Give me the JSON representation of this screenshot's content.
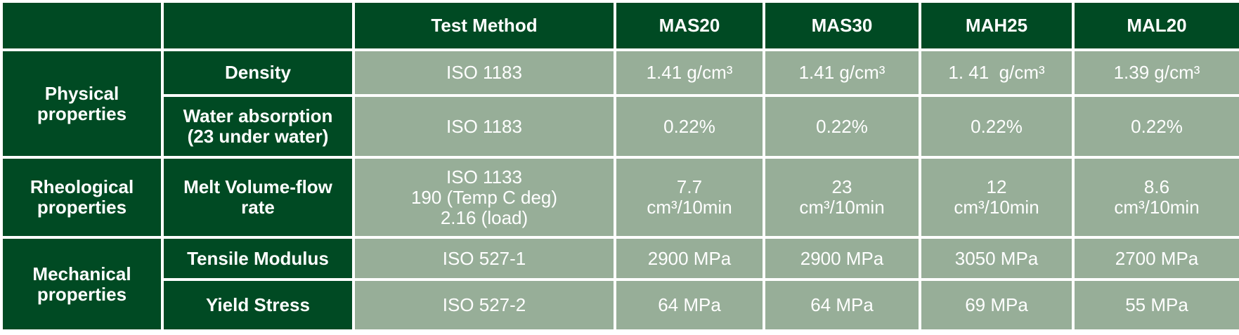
{
  "table": {
    "columns": [
      "Test Method",
      "MAS20",
      "MAS30",
      "MAH25",
      "MAL20"
    ],
    "groups": [
      {
        "label": [
          "Physical",
          "properties"
        ],
        "rows": [
          {
            "property": [
              "Density"
            ],
            "method": [
              "ISO 1183"
            ],
            "values": [
              [
                "1.41 g/cm³"
              ],
              [
                "1.41 g/cm³"
              ],
              [
                "1. 41  g/cm³"
              ],
              [
                "1.39 g/cm³"
              ]
            ]
          },
          {
            "property": [
              "Water absorption",
              "(23 under water)"
            ],
            "method": [
              "ISO 1183"
            ],
            "values": [
              [
                "0.22%"
              ],
              [
                "0.22%"
              ],
              [
                "0.22%"
              ],
              [
                "0.22%"
              ]
            ]
          }
        ]
      },
      {
        "label": [
          "Rheological",
          "properties"
        ],
        "rows": [
          {
            "property": [
              "Melt Volume-flow",
              "rate"
            ],
            "method": [
              "ISO 1133",
              "190 (Temp C deg)",
              "2.16 (load)"
            ],
            "values": [
              [
                "7.7",
                "cm³/10min"
              ],
              [
                "23",
                "cm³/10min"
              ],
              [
                "12",
                "cm³/10min"
              ],
              [
                "8.6",
                "cm³/10min"
              ]
            ]
          }
        ]
      },
      {
        "label": [
          "Mechanical",
          "properties"
        ],
        "rows": [
          {
            "property": [
              "Tensile Modulus"
            ],
            "method": [
              "ISO 527-1"
            ],
            "values": [
              [
                "2900 MPa"
              ],
              [
                "2900 MPa"
              ],
              [
                "3050 MPa"
              ],
              [
                "2700 MPa"
              ]
            ]
          },
          {
            "property": [
              "Yield Stress"
            ],
            "method": [
              "ISO 527-2"
            ],
            "values": [
              [
                "64 MPa"
              ],
              [
                "64 MPa"
              ],
              [
                "69 MPa"
              ],
              [
                "55 MPa"
              ]
            ]
          }
        ]
      }
    ]
  }
}
